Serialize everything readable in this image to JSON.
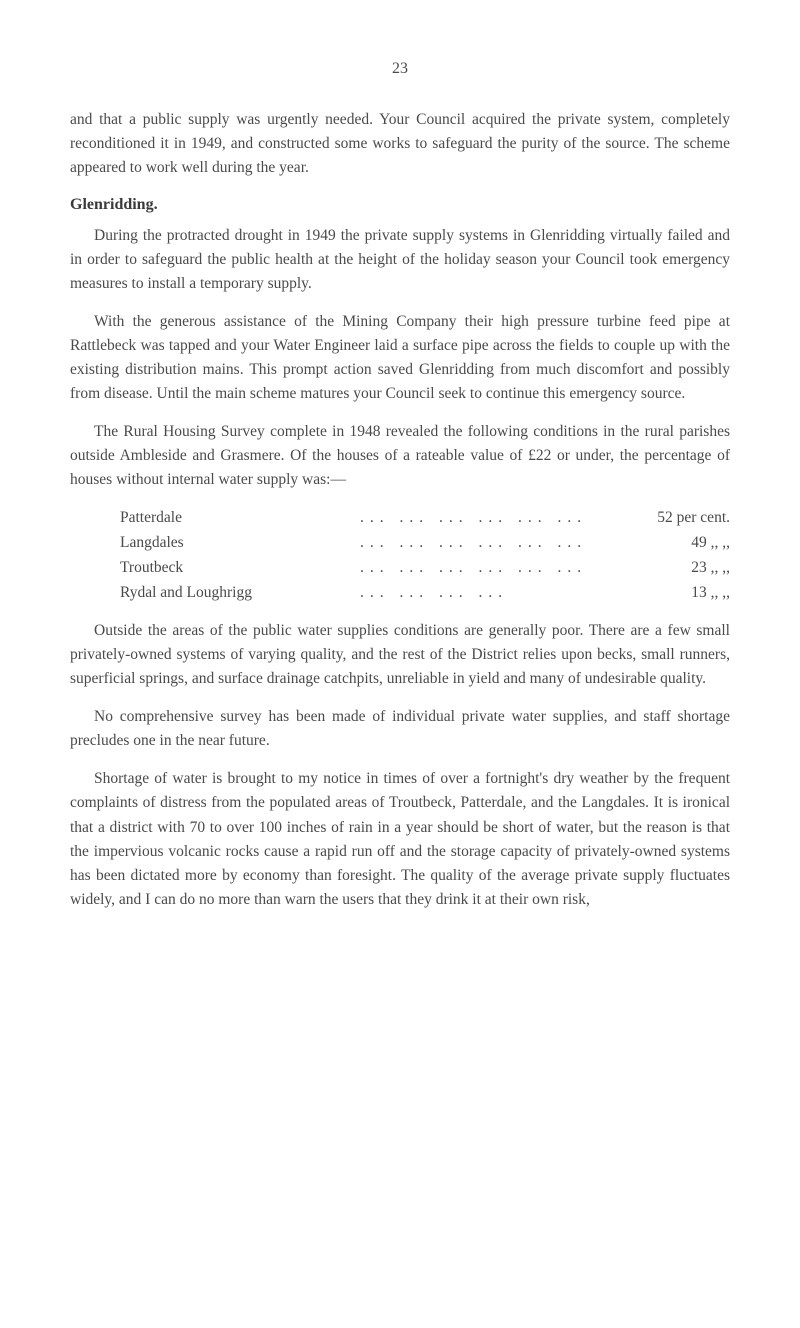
{
  "pageNumber": "23",
  "intro": {
    "p1": "and that a public supply was urgently needed. Your Council acquired the private system, completely reconditioned it in 1949, and constructed some works to safeguard the purity of the source. The scheme appeared to work well during the year."
  },
  "section1": {
    "heading": "Glenridding.",
    "p1": "During the protracted drought in 1949 the private supply systems in Glenridding virtually failed and in order to safeguard the public health at the height of the holiday season your Council took emergency measures to install a temporary supply.",
    "p2": "With the generous assistance of the Mining Company their high pressure turbine feed pipe at Rattlebeck was tapped and your Water Engineer laid a surface pipe across the fields to couple up with the existing distribution mains. This prompt action saved Glenridding from much discomfort and possibly from disease. Until the main scheme matures your Council seek to continue this emergency source.",
    "p3": "The Rural Housing Survey complete in 1948 revealed the following conditions in the rural parishes outside Ambleside and Grasmere. Of the houses of a rateable value of £22 or under, the percentage of houses without internal water supply was:—"
  },
  "table": {
    "rows": [
      {
        "label": "Patterdale",
        "dots": "...   ...   ...   ...   ...   ...",
        "value": "52 per cent."
      },
      {
        "label": "Langdales",
        "dots": "...   ...   ...   ...   ...   ...",
        "value": "49  ,,    ,,"
      },
      {
        "label": "Troutbeck",
        "dots": "...   ...   ...   ...   ...   ...",
        "value": "23  ,,    ,,"
      },
      {
        "label": "Rydal and Loughrigg",
        "dots": "...   ...   ...   ...",
        "value": "13  ,,    ,,"
      }
    ]
  },
  "section2": {
    "p1": "Outside the areas of the public water supplies conditions are generally poor. There are a few small privately-owned systems of varying quality, and the rest of the District relies upon becks, small runners, superficial springs, and surface drainage catchpits, unreliable in yield and many of undesirable quality.",
    "p2": "No comprehensive survey has been made of individual private water supplies, and staff shortage precludes one in the near future.",
    "p3": "Shortage of water is brought to my notice in times of over a fortnight's dry weather by the frequent complaints of distress from the populated areas of Troutbeck, Patterdale, and the Langdales. It is ironical that a district with 70 to over 100 inches of rain in a year should be short of water, but the reason is that the impervious volcanic rocks cause a rapid run off and the storage capacity of privately-owned systems has been dictated more by economy than foresight. The quality of the average private supply fluctuates widely, and I can do no more than warn the users that they drink it at their own risk,"
  },
  "styling": {
    "backgroundColor": "#ffffff",
    "textColor": "#4a4a4a",
    "headingColor": "#3a3a3a",
    "fontSize": 15.5,
    "lineHeight": 1.55,
    "pageWidth": 800,
    "pageHeight": 1328
  }
}
